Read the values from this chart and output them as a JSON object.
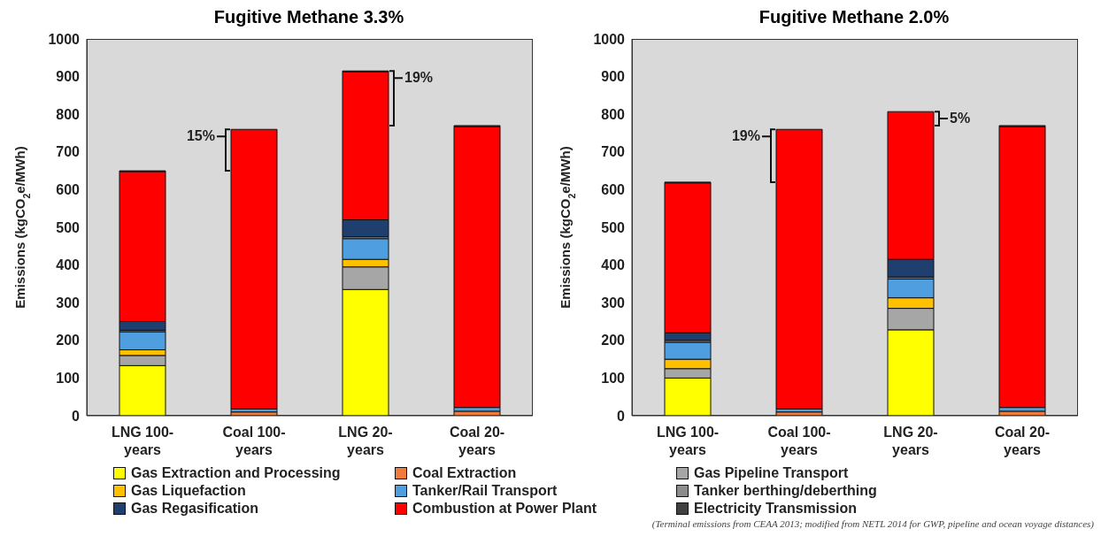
{
  "chart_data": [
    {
      "type": "bar",
      "title": "Fugitive Methane 3.3%",
      "ylabel": "Emissions (kgCO$_{2}$e/MWh)",
      "categories": [
        "LNG 100-years",
        "Coal 100-years",
        "LNG 20-years",
        "Coal 20-years"
      ],
      "stacked": true,
      "ylim": [
        0,
        1000
      ],
      "yticks": [
        0,
        100,
        200,
        300,
        400,
        500,
        600,
        700,
        800,
        900,
        1000
      ],
      "legend": "bottom",
      "series": [
        {
          "name": "Gas Extraction and Processing",
          "color": "#ffff00",
          "values": [
            133,
            0,
            335,
            0
          ]
        },
        {
          "name": "Coal Extraction",
          "color": "#f07c3c",
          "values": [
            0,
            10,
            0,
            12
          ]
        },
        {
          "name": "Gas Pipeline Transport",
          "color": "#a6a6a6",
          "values": [
            27,
            0,
            60,
            0
          ]
        },
        {
          "name": "Gas Liquefaction",
          "color": "#ffc000",
          "values": [
            15,
            0,
            20,
            0
          ]
        },
        {
          "name": "Tanker/Rail Transport",
          "color": "#4f9fe0",
          "values": [
            48,
            8,
            55,
            10
          ]
        },
        {
          "name": "Tanker berthing/deberthing",
          "color": "#8c8c8c",
          "values": [
            4,
            0,
            5,
            0
          ]
        },
        {
          "name": "Gas Regasification",
          "color": "#1f3f6f",
          "values": [
            23,
            0,
            45,
            0
          ]
        },
        {
          "name": "Combustion at Power Plant",
          "color": "#ff0000",
          "values": [
            398,
            742,
            393,
            745
          ]
        },
        {
          "name": "Electricity Transmission",
          "color": "#404040",
          "values": [
            2,
            0,
            2,
            3
          ]
        }
      ],
      "annotations": [
        {
          "text": "15%",
          "x": "Coal 100-years",
          "y": 760
        },
        {
          "text": "19%",
          "x": "LNG 20-years",
          "y": 915
        }
      ]
    },
    {
      "type": "bar",
      "title": "Fugitive Methane 2.0%",
      "ylabel": "Emissions (kgCO$_{2}$e/MWh)",
      "categories": [
        "LNG 100-years",
        "Coal 100-years",
        "LNG 20-years",
        "Coal 20-years"
      ],
      "stacked": true,
      "ylim": [
        0,
        1000
      ],
      "yticks": [
        0,
        100,
        200,
        300,
        400,
        500,
        600,
        700,
        800,
        900,
        1000
      ],
      "series": [
        {
          "color": "#ffff00",
          "values": [
            100,
            0,
            228,
            0
          ]
        },
        {
          "color": "#f07c3c",
          "values": [
            0,
            10,
            0,
            12
          ]
        },
        {
          "color": "#a6a6a6",
          "values": [
            25,
            0,
            57,
            0
          ]
        },
        {
          "color": "#ffc000",
          "values": [
            25,
            0,
            28,
            0
          ]
        },
        {
          "color": "#4f9fe0",
          "values": [
            45,
            8,
            50,
            10
          ]
        },
        {
          "color": "#8c8c8c",
          "values": [
            5,
            0,
            5,
            0
          ]
        },
        {
          "color": "#1f3f6f",
          "values": [
            20,
            0,
            47,
            0
          ]
        },
        {
          "color": "#ff0000",
          "values": [
            398,
            742,
            392,
            745
          ]
        },
        {
          "color": "#404040",
          "values": [
            2,
            0,
            0,
            3
          ]
        }
      ],
      "annotations": [
        {
          "text": "19%",
          "x": "Coal 100-years",
          "y": 760
        },
        {
          "text": "5%",
          "x": "LNG 20-years",
          "y": 807
        },
        "(Terminal emissions from CEAA 2013; modified from NETL 2014 for GWP, pipeline and ocean voyage distances)"
      ]
    }
  ]
}
